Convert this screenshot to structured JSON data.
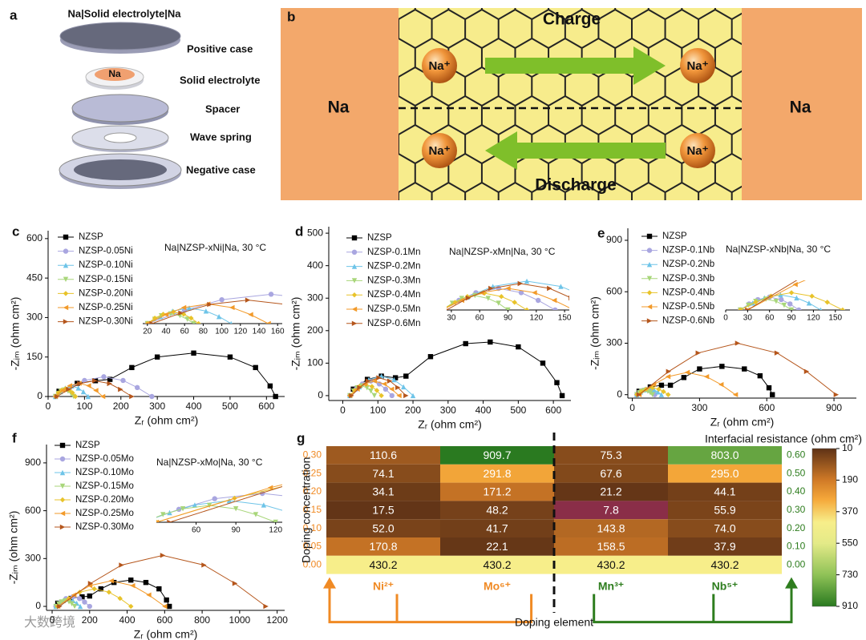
{
  "panel_a": {
    "label": "a",
    "title": "Na|Solid electrolyte|Na",
    "anode": "Na",
    "parts": [
      "Positive case",
      "Solid electrolyte",
      "Spacer",
      "Wave spring",
      "Negative case"
    ]
  },
  "panel_b": {
    "label": "b",
    "left": "Na",
    "right": "Na",
    "top": "Charge",
    "bottom": "Discharge",
    "ion": "Na⁺"
  },
  "watermark": "大数跨境",
  "chart_data": [
    {
      "type": "line",
      "label": "c",
      "note": "Na|NZSP-xNi|Na, 30 °C",
      "xlabel": "Zᵣ (ohm cm²)",
      "ylabel": "-Zᵢₘ (ohm cm²)",
      "xlim": [
        0,
        650
      ],
      "xticks": [
        0,
        100,
        200,
        300,
        400,
        500,
        600
      ],
      "ylim": [
        0,
        630
      ],
      "yticks": [
        0,
        150,
        300,
        450,
        600
      ],
      "legend": "upper left",
      "series": [
        {
          "name": "NZSP",
          "color": "#000000",
          "marker": "square",
          "x": [
            30,
            80,
            130,
            170,
            230,
            300,
            400,
            500,
            570,
            610,
            625
          ],
          "values": [
            20,
            50,
            60,
            65,
            110,
            150,
            165,
            150,
            110,
            40,
            0
          ]
        },
        {
          "name": "NZSP-0.05Ni",
          "color": "#a9a6e0",
          "marker": "circle",
          "x": [
            20,
            60,
            100,
            153,
            206,
            245,
            285
          ],
          "values": [
            0,
            34,
            61,
            75,
            61,
            34,
            0
          ]
        },
        {
          "name": "NZSP-0.10Ni",
          "color": "#6ec4e8",
          "marker": "tri-up",
          "x": [
            20,
            34,
            47,
            65,
            83,
            97,
            110
          ],
          "values": [
            0,
            18,
            32,
            40,
            32,
            18,
            0
          ]
        },
        {
          "name": "NZSP-0.15Ni",
          "color": "#a8d67a",
          "marker": "tri-down",
          "x": [
            20,
            28,
            35,
            45,
            55,
            63,
            70
          ],
          "values": [
            0,
            11,
            20,
            25,
            20,
            11,
            0
          ]
        },
        {
          "name": "NZSP-0.20Ni",
          "color": "#e8c32a",
          "marker": "diamond",
          "x": [
            20,
            28,
            37,
            48,
            59,
            67,
            75
          ],
          "values": [
            0,
            14,
            24,
            30,
            24,
            14,
            0
          ]
        },
        {
          "name": "NZSP-0.25Ni",
          "color": "#f29a2a",
          "marker": "tri-left",
          "x": [
            20,
            40,
            59,
            85,
            111,
            131,
            150
          ],
          "values": [
            0,
            23,
            41,
            50,
            41,
            23,
            0
          ]
        },
        {
          "name": "NZSP-0.30Ni",
          "color": "#b5561c",
          "marker": "tri-right",
          "x": [
            25,
            56,
            87,
            128,
            169,
            199,
            230
          ],
          "values": [
            0,
            27,
            49,
            60,
            49,
            27,
            0
          ]
        }
      ],
      "inset": {
        "xlim": [
          15,
          165
        ],
        "xticks": [
          20,
          40,
          60,
          80,
          100,
          120,
          140,
          160
        ],
        "ylim": [
          0,
          90
        ]
      }
    },
    {
      "type": "line",
      "label": "d",
      "note": "Na|NZSP-xMn|Na, 30 °C",
      "xlabel": "Zᵣ (ohm cm²)",
      "ylabel": "-Zᵢₘ (ohm cm²)",
      "xlim": [
        -40,
        650
      ],
      "xticks": [
        0,
        100,
        200,
        300,
        400,
        500,
        600
      ],
      "ylim": [
        -15,
        520
      ],
      "yticks": [
        0,
        100,
        200,
        300,
        400,
        500
      ],
      "legend": "upper left",
      "series": [
        {
          "name": "NZSP",
          "color": "#000000",
          "marker": "square",
          "x": [
            30,
            70,
            110,
            150,
            180,
            250,
            350,
            420,
            500,
            570,
            610,
            625
          ],
          "values": [
            20,
            50,
            60,
            55,
            60,
            120,
            160,
            165,
            150,
            100,
            40,
            0
          ]
        },
        {
          "name": "NZSP-0.1Mn",
          "color": "#a9a6e0",
          "marker": "circle",
          "x": [
            20,
            38,
            56,
            80,
            104,
            122,
            140
          ],
          "values": [
            0,
            20,
            36,
            45,
            36,
            20,
            0
          ]
        },
        {
          "name": "NZSP-0.2Mn",
          "color": "#6ec4e8",
          "marker": "tri-up",
          "x": [
            20,
            47,
            74,
            110,
            146,
            173,
            200
          ],
          "values": [
            0,
            27,
            49,
            60,
            49,
            27,
            0
          ]
        },
        {
          "name": "NZSP-0.3Mn",
          "color": "#a8d67a",
          "marker": "tri-down",
          "x": [
            20,
            31,
            41,
            55,
            69,
            80,
            90
          ],
          "values": [
            0,
            14,
            24,
            30,
            24,
            14,
            0
          ]
        },
        {
          "name": "NZSP-0.4Mn",
          "color": "#e8c32a",
          "marker": "diamond",
          "x": [
            20,
            34,
            47,
            65,
            83,
            97,
            110
          ],
          "values": [
            0,
            16,
            28,
            35,
            28,
            16,
            0
          ]
        },
        {
          "name": "NZSP-0.5Mn",
          "color": "#f29a2a",
          "marker": "tri-left",
          "x": [
            20,
            41,
            62,
            90,
            118,
            139,
            160
          ],
          "values": [
            0,
            20,
            36,
            45,
            36,
            20,
            0
          ]
        },
        {
          "name": "NZSP-0.6Mn",
          "color": "#b5561c",
          "marker": "tri-right",
          "x": [
            25,
            48,
            72,
            103,
            134,
            157,
            180
          ],
          "values": [
            0,
            25,
            45,
            55,
            45,
            25,
            0
          ]
        }
      ],
      "inset": {
        "xlim": [
          25,
          155
        ],
        "xticks": [
          30,
          60,
          90,
          120,
          150
        ],
        "ylim": [
          0,
          70
        ]
      }
    },
    {
      "type": "line",
      "label": "e",
      "note": "Na|NZSP-xNb|Na, 30 °C",
      "xlabel": "Zᵣ (ohm cm²)",
      "ylabel": "-Zᵢₘ (ohm cm²)",
      "xlim": [
        -20,
        1000
      ],
      "xticks": [
        0,
        300,
        600,
        900
      ],
      "ylim": [
        -20,
        970
      ],
      "yticks": [
        0,
        300,
        600,
        900
      ],
      "legend": "upper left",
      "series": [
        {
          "name": "NZSP",
          "color": "#000000",
          "marker": "square",
          "x": [
            30,
            80,
            130,
            170,
            230,
            300,
            400,
            500,
            570,
            610,
            625
          ],
          "values": [
            20,
            45,
            55,
            55,
            100,
            150,
            165,
            150,
            110,
            40,
            0
          ]
        },
        {
          "name": "NZSP-0.1Nb",
          "color": "#a9a6e0",
          "marker": "circle",
          "x": [
            20,
            32,
            44,
            60,
            76,
            88,
            100
          ],
          "values": [
            0,
            14,
            24,
            30,
            24,
            14,
            0
          ]
        },
        {
          "name": "NZSP-0.2Nb",
          "color": "#6ec4e8",
          "marker": "tri-up",
          "x": [
            20,
            37,
            53,
            75,
            97,
            114,
            130
          ],
          "values": [
            0,
            16,
            28,
            35,
            28,
            16,
            0
          ]
        },
        {
          "name": "NZSP-0.3Nb",
          "color": "#a8d67a",
          "marker": "tri-down",
          "x": [
            20,
            31,
            41,
            55,
            69,
            80,
            90
          ],
          "values": [
            0,
            11,
            20,
            25,
            20,
            11,
            0
          ]
        },
        {
          "name": "NZSP-0.4Nb",
          "color": "#e8c32a",
          "marker": "diamond",
          "x": [
            20,
            41,
            62,
            90,
            118,
            139,
            160
          ],
          "values": [
            0,
            18,
            32,
            40,
            32,
            18,
            0
          ]
        },
        {
          "name": "NZSP-0.5Nb",
          "color": "#f29a2a",
          "marker": "tri-left",
          "x": [
            30,
            95,
            159,
            245,
            331,
            396,
            460
          ],
          "values": [
            0,
            59,
            105,
            130,
            105,
            59,
            0
          ]
        },
        {
          "name": "NZSP-0.6Nb",
          "color": "#b5561c",
          "marker": "tri-right",
          "x": [
            30,
            162,
            294,
            470,
            646,
            778,
            910
          ],
          "values": [
            0,
            135,
            243,
            300,
            243,
            135,
            0
          ]
        }
      ],
      "inset": {
        "xlim": [
          0,
          170
        ],
        "xticks": [
          0,
          30,
          60,
          90,
          120,
          150
        ],
        "ylim": [
          0,
          50
        ]
      }
    },
    {
      "type": "line",
      "label": "f",
      "note": "Na|NZSP-xMo|Na, 30 °C",
      "xlabel": "Zᵣ (ohm cm²)",
      "ylabel": "-Zᵢₘ (ohm cm²)",
      "xlim": [
        -30,
        1240
      ],
      "xticks": [
        0,
        200,
        400,
        600,
        800,
        1000,
        1200
      ],
      "ylim": [
        -25,
        1015
      ],
      "yticks": [
        0,
        300,
        600,
        900
      ],
      "legend": "upper left",
      "series": [
        {
          "name": "NZSP",
          "color": "#000000",
          "marker": "square",
          "x": [
            30,
            100,
            160,
            200,
            260,
            330,
            420,
            500,
            570,
            610,
            625
          ],
          "values": [
            20,
            50,
            60,
            65,
            110,
            150,
            165,
            150,
            110,
            40,
            0
          ]
        },
        {
          "name": "NZSP-0.05Mo",
          "color": "#a9a6e0",
          "marker": "circle",
          "x": [
            20,
            47,
            74,
            110,
            146,
            173,
            200
          ],
          "values": [
            0,
            27,
            49,
            60,
            49,
            27,
            0
          ]
        },
        {
          "name": "NZSP-0.10Mo",
          "color": "#6ec4e8",
          "marker": "tri-up",
          "x": [
            20,
            40,
            59,
            85,
            111,
            131,
            150
          ],
          "values": [
            0,
            20,
            36,
            45,
            36,
            20,
            0
          ]
        },
        {
          "name": "NZSP-0.15Mo",
          "color": "#a8d67a",
          "marker": "tri-down",
          "x": [
            20,
            35,
            50,
            70,
            90,
            105,
            120
          ],
          "values": [
            0,
            16,
            28,
            35,
            28,
            16,
            0
          ]
        },
        {
          "name": "NZSP-0.20Mo",
          "color": "#e8c32a",
          "marker": "diamond",
          "x": [
            30,
            89,
            147,
            225,
            303,
            362,
            420
          ],
          "values": [
            0,
            50,
            89,
            110,
            89,
            50,
            0
          ]
        },
        {
          "name": "NZSP-0.25Mo",
          "color": "#f29a2a",
          "marker": "tri-left",
          "x": [
            30,
            116,
            201,
            315,
            429,
            515,
            600
          ],
          "values": [
            0,
            72,
            130,
            160,
            130,
            72,
            0
          ]
        },
        {
          "name": "NZSP-0.30Mo",
          "color": "#b5561c",
          "marker": "tri-right",
          "x": [
            40,
            205,
            370,
            590,
            810,
            975,
            1140
          ],
          "values": [
            0,
            144,
            259,
            320,
            259,
            144,
            0
          ]
        }
      ],
      "inset": {
        "xlim": [
          30,
          125
        ],
        "xticks": [
          60,
          90,
          120
        ],
        "ylim": [
          0,
          70
        ]
      }
    },
    {
      "type": "heatmap",
      "label": "g",
      "xlabel": "Doping element",
      "ylabel": "Doping concentration",
      "columns": [
        "Ni²⁺",
        "Mo⁶⁺",
        "Mn³⁺",
        "Nb⁵⁺"
      ],
      "column_colors": [
        "#f08a24",
        "#f08a24",
        "#2e7d1e",
        "#2e7d1e"
      ],
      "rows_left": [
        "0.30",
        "0.25",
        "0.20",
        "0.15",
        "0.10",
        "0.05",
        "0.00"
      ],
      "left_color": "#f08a24",
      "rows_right": [
        "0.60",
        "0.50",
        "0.40",
        "0.30",
        "0.20",
        "0.10",
        "0.00"
      ],
      "right_color": "#2e7d1e",
      "values": [
        [
          110.6,
          909.7,
          75.3,
          803.0
        ],
        [
          74.1,
          291.8,
          67.6,
          295.0
        ],
        [
          34.1,
          171.2,
          21.2,
          44.1
        ],
        [
          17.5,
          48.2,
          7.8,
          55.9
        ],
        [
          52.0,
          41.7,
          143.8,
          74.0
        ],
        [
          170.8,
          22.1,
          158.5,
          37.9
        ],
        [
          430.2,
          430.2,
          430.2,
          430.2
        ]
      ],
      "value_labels": [
        [
          "110.6",
          "909.7",
          "75.3",
          "803.0"
        ],
        [
          "74.1",
          "291.8",
          "67.6",
          "295.0"
        ],
        [
          "34.1",
          "171.2",
          "21.2",
          "44.1"
        ],
        [
          "17.5",
          "48.2",
          "7.8",
          "55.9"
        ],
        [
          "52.0",
          "41.7",
          "143.8",
          "74.0"
        ],
        [
          "170.8",
          "22.1",
          "158.5",
          "37.9"
        ],
        [
          "430.2",
          "430.2",
          "430.2",
          "430.2"
        ]
      ],
      "colorbar": {
        "title": "Interfacial resistance (ohm cm²)",
        "lim": [
          10,
          910
        ],
        "ticks": [
          10,
          190,
          370,
          550,
          730,
          910
        ],
        "stops": [
          10,
          190,
          300,
          430,
          550,
          730,
          910
        ],
        "colors": [
          "#5e3216",
          "#d07a27",
          "#f5a83a",
          "#f7ee8a",
          "#e4ea88",
          "#8fc257",
          "#2a7a20"
        ],
        "under_color": "#8a2e48"
      }
    }
  ]
}
